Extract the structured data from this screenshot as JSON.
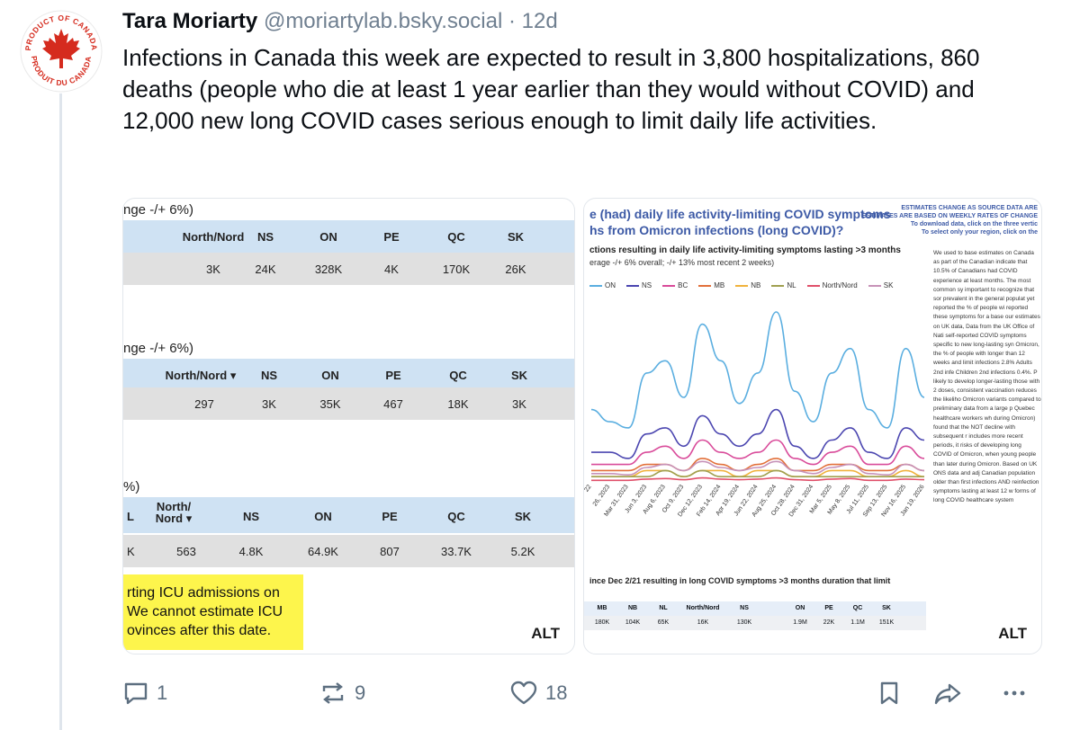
{
  "author": {
    "name": "Tara Moriarty",
    "handle": "@moriartylab.bsky.social",
    "separator": "·",
    "time": "12d"
  },
  "avatar": {
    "ring_top": "PRODUCT OF CANADA",
    "ring_bottom": "PRODUIT DU CANADA",
    "color": "#d52b1e"
  },
  "post": {
    "text": "Infections in Canada this week are expected to result in 3,800 hospitalizations, 860 deaths (people who die at least 1 year earlier than they would without COVID) and 12,000 new long COVID cases serious enough to limit daily life activities."
  },
  "left_image": {
    "tables": [
      {
        "caption": "nge -/+ 6%)",
        "headers": [
          "North/Nord",
          "NS",
          "ON",
          "PE",
          "QC",
          "SK"
        ],
        "values": [
          "3K",
          "24K",
          "328K",
          "4K",
          "170K",
          "26K"
        ]
      },
      {
        "caption": "nge -/+ 6%)",
        "headers": [
          "North/Nord ▾",
          "NS",
          "ON",
          "PE",
          "QC",
          "SK"
        ],
        "values": [
          "297",
          "3K",
          "35K",
          "467",
          "18K",
          "3K"
        ]
      },
      {
        "caption": "%)",
        "lead_header": "L",
        "lead_value": "K",
        "headers": [
          "North/\nNord ▾",
          "NS",
          "ON",
          "PE",
          "QC",
          "SK"
        ],
        "values": [
          "563",
          "4.8K",
          "64.9K",
          "807",
          "33.7K",
          "5.2K"
        ]
      }
    ],
    "yellow_note": "rting ICU admissions on\nWe cannot estimate ICU\novinces after this date.",
    "alt_label": "ALT"
  },
  "right_image": {
    "title_line1": "e (had) daily life activity-limiting COVID symptoms",
    "title_line2": "hs from Omicron infections (long COVID)?",
    "note_line1": "ESTIMATES CHANGE AS SOURCE DATA ARE",
    "note_line2": "ESTIMATES ARE BASED ON WEEKLY RATES OF CHANGE",
    "note_line3": "To download data, click on the three vertic",
    "note_line4": "To select only your region, click on the",
    "chart_title": "ctions resulting in daily life activity-limiting symptoms lasting >3 months",
    "chart_subtitle": "erage -/+ 6% overall; -/+ 13% most recent 2 weeks)",
    "side_text": "We used to base estimates on Canada as part of the Canadian indicate that 10.5% of Canadians had COVID experience at least months. The most common sy important to recognize that sor prevalent in the general populat yet reported the % of people wi reported these symptoms for a base our estimates on UK data, Data from the UK Office of Nati self-reported COVID symptoms specific to new long-lasting syn Omicron, the % of people with longer than 12 weeks and limit infections 2.8% Adults 2nd infe Children 2nd infections 0.4%. P likely to develop longer-lasting those with 2 doses, consistent vaccination reduces the likeliho Omicron variants compared to preliminary data from a large p Quebec healthcare workers wh during Omicron) found that the NOT decline with subsequent r includes more recent periods, it risks of developing long COVID of Omicron, when young people than later during Omicron. Based on UK ONS data and adj Canadian population older than first infections AND reinfection symptoms lasting at least 12 w forms of long COVID healthcare system",
    "bottom_title": "ince Dec 2/21 resulting in long COVID symptoms >3 months duration that limit",
    "bottom_headers": [
      "MB",
      "NB",
      "NL",
      "North/Nord",
      "NS",
      "ON",
      "PE",
      "QC",
      "SK"
    ],
    "bottom_values": [
      "180K",
      "104K",
      "65K",
      "16K",
      "130K",
      "1.9M",
      "22K",
      "1.1M",
      "151K"
    ],
    "alt_label": "ALT"
  },
  "chart_data": {
    "type": "line",
    "title": "ctions resulting in daily life activity-limiting symptoms lasting >3 months",
    "x": [
      "22",
      "26, 2023",
      "Mar 31, 2023",
      "Jun 3, 2023",
      "Aug 6, 2023",
      "Oct 9, 2023",
      "Dec 12, 2023",
      "Feb 14, 2024",
      "Apr 19, 2024",
      "Jun 22, 2024",
      "Aug 25, 2024",
      "Oct 28, 2024",
      "Dec 31, 2024",
      "Mar 5, 2025",
      "May 8, 2025",
      "Jul 11, 2025",
      "Sep 13, 2025",
      "Nov 16, 2025",
      "Jan 19, 2026"
    ],
    "series": [
      {
        "name": "ON",
        "color": "#5aaee0",
        "values": [
          12,
          10,
          9,
          18,
          20,
          14,
          26,
          20,
          13,
          18,
          28,
          15,
          10,
          18,
          22,
          12,
          9,
          22,
          14
        ]
      },
      {
        "name": "NS",
        "color": "#4b46b0",
        "values": [
          5,
          5,
          4,
          8,
          9,
          6,
          11,
          8,
          6,
          8,
          12,
          6,
          4,
          7,
          9,
          5,
          4,
          9,
          7
        ]
      },
      {
        "name": "BC",
        "color": "#d94b9a",
        "values": [
          3,
          3,
          3,
          5,
          6,
          4,
          7,
          5,
          4,
          5,
          7,
          4,
          3,
          5,
          6,
          3,
          3,
          6,
          4
        ]
      },
      {
        "name": "MB",
        "color": "#e2703a",
        "values": [
          2,
          2,
          2,
          3,
          3,
          2,
          4,
          3,
          2,
          3,
          4,
          2,
          2,
          3,
          3,
          2,
          2,
          3,
          2
        ]
      },
      {
        "name": "NB",
        "color": "#f0b23c",
        "values": [
          1,
          1,
          1,
          2,
          2,
          1,
          2,
          2,
          1,
          2,
          2,
          1,
          1,
          2,
          2,
          1,
          1,
          2,
          1
        ]
      },
      {
        "name": "NL",
        "color": "#a0a050",
        "values": [
          1,
          1,
          1,
          1,
          2,
          1,
          2,
          1,
          1,
          1,
          2,
          1,
          1,
          1,
          1,
          1,
          1,
          1,
          1
        ]
      },
      {
        "name": "North/Nord",
        "color": "#e0506a",
        "values": [
          0.4,
          0.4,
          0.4,
          0.6,
          0.7,
          0.5,
          0.8,
          0.6,
          0.5,
          0.6,
          0.8,
          0.5,
          0.4,
          0.6,
          0.7,
          0.4,
          0.4,
          0.6,
          0.5
        ]
      },
      {
        "name": "SK",
        "color": "#c792b8",
        "values": [
          1.5,
          1.5,
          1.3,
          2.5,
          3,
          2,
          3.5,
          2.5,
          2,
          2.5,
          3.5,
          2,
          1.5,
          2.5,
          3,
          1.5,
          1.3,
          3,
          2
        ]
      }
    ]
  },
  "actions": {
    "reply_count": "1",
    "repost_count": "9",
    "like_count": "18"
  }
}
